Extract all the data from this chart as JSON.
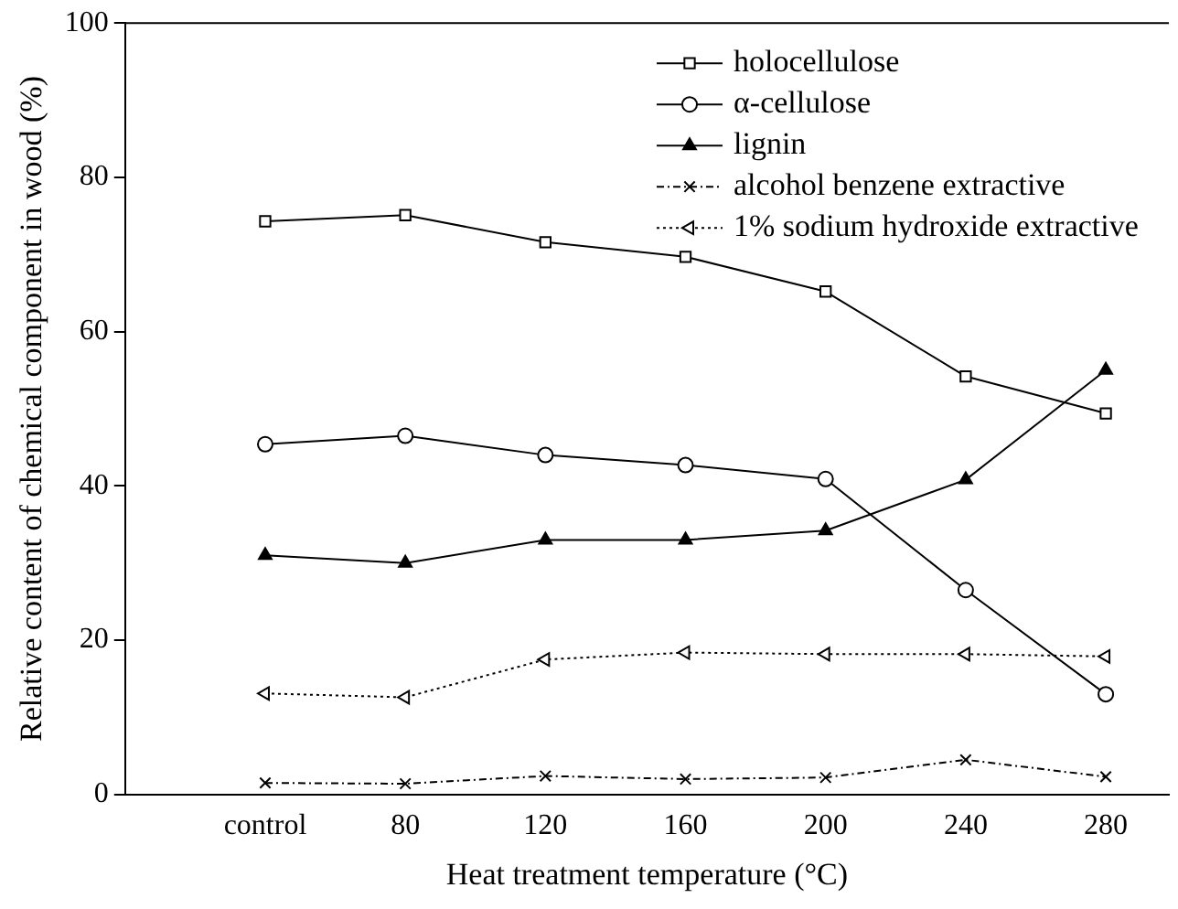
{
  "chart_data": {
    "type": "line",
    "xlabel": "Heat treatment temperature (°C)",
    "ylabel": "Relative content of chemical component in wood (%)",
    "categories": [
      "control",
      "80",
      "120",
      "160",
      "200",
      "240",
      "280"
    ],
    "ylim": [
      0,
      100
    ],
    "yticks": [
      0,
      20,
      40,
      60,
      80,
      100
    ],
    "grid": false,
    "legend": "top right",
    "series": [
      {
        "name": "holocellulose",
        "color": "#000000",
        "marker": "square",
        "line_style": "solid",
        "values": [
          74.3,
          75.1,
          71.6,
          69.7,
          65.2,
          54.2,
          49.4
        ]
      },
      {
        "name": "α-cellulose",
        "color": "#000000",
        "marker": "circle",
        "line_style": "solid",
        "values": [
          45.4,
          46.5,
          44,
          42.7,
          40.9,
          26.5,
          13
        ]
      },
      {
        "name": "lignin",
        "color": "#000000",
        "marker": "triangle",
        "line_style": "solid",
        "values": [
          31,
          30,
          33,
          33,
          34.2,
          40.8,
          55
        ]
      },
      {
        "name": "alcohol benzene extractive",
        "color": "#000000",
        "marker": "cross",
        "line_style": "dashed",
        "values": [
          1.5,
          1.4,
          2.4,
          2,
          2.2,
          4.5,
          2.3
        ]
      },
      {
        "name": "1% sodium hydroxide extractive",
        "color": "#000000",
        "marker": "triangle",
        "line_style": "dotted",
        "values": [
          13.1,
          12.6,
          17.5,
          18.4,
          18.2,
          18.2,
          17.9
        ]
      }
    ]
  }
}
